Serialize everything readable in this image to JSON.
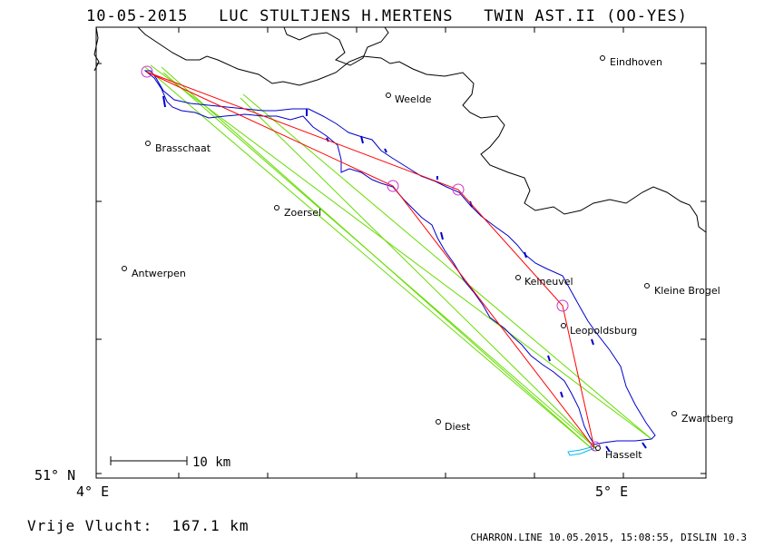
{
  "header": {
    "date": "10-05-2015",
    "pilots": "LUC STULTJENS H.MERTENS",
    "glider": "TWIN AST.II (OO-YES)"
  },
  "map": {
    "lat_label": "51° N",
    "lon_labels": [
      "4° E",
      "5° E"
    ],
    "scale_label": "10 km",
    "towns": [
      {
        "name": "Eindhoven"
      },
      {
        "name": "Weelde"
      },
      {
        "name": "Brasschaat"
      },
      {
        "name": "Zoersel"
      },
      {
        "name": "Antwerpen"
      },
      {
        "name": "Kelneuvel"
      },
      {
        "name": "Kleine Brogel"
      },
      {
        "name": "Leopoldsburg"
      },
      {
        "name": "Zwartberg"
      },
      {
        "name": "Diest"
      },
      {
        "name": "Hasselt"
      }
    ],
    "colors": {
      "border": "#000000",
      "track": "#0000cc",
      "task": "#ff0000",
      "turnpoint": "#cc33cc",
      "sectors": "#66dd00",
      "local": "#00bbee"
    }
  },
  "footer": {
    "distance_label": "Vrije Vlucht:",
    "distance_value": "167.1 km",
    "software": "CHARRON.LINE 10.05.2015, 15:08:55, DISLIN 10.3"
  }
}
